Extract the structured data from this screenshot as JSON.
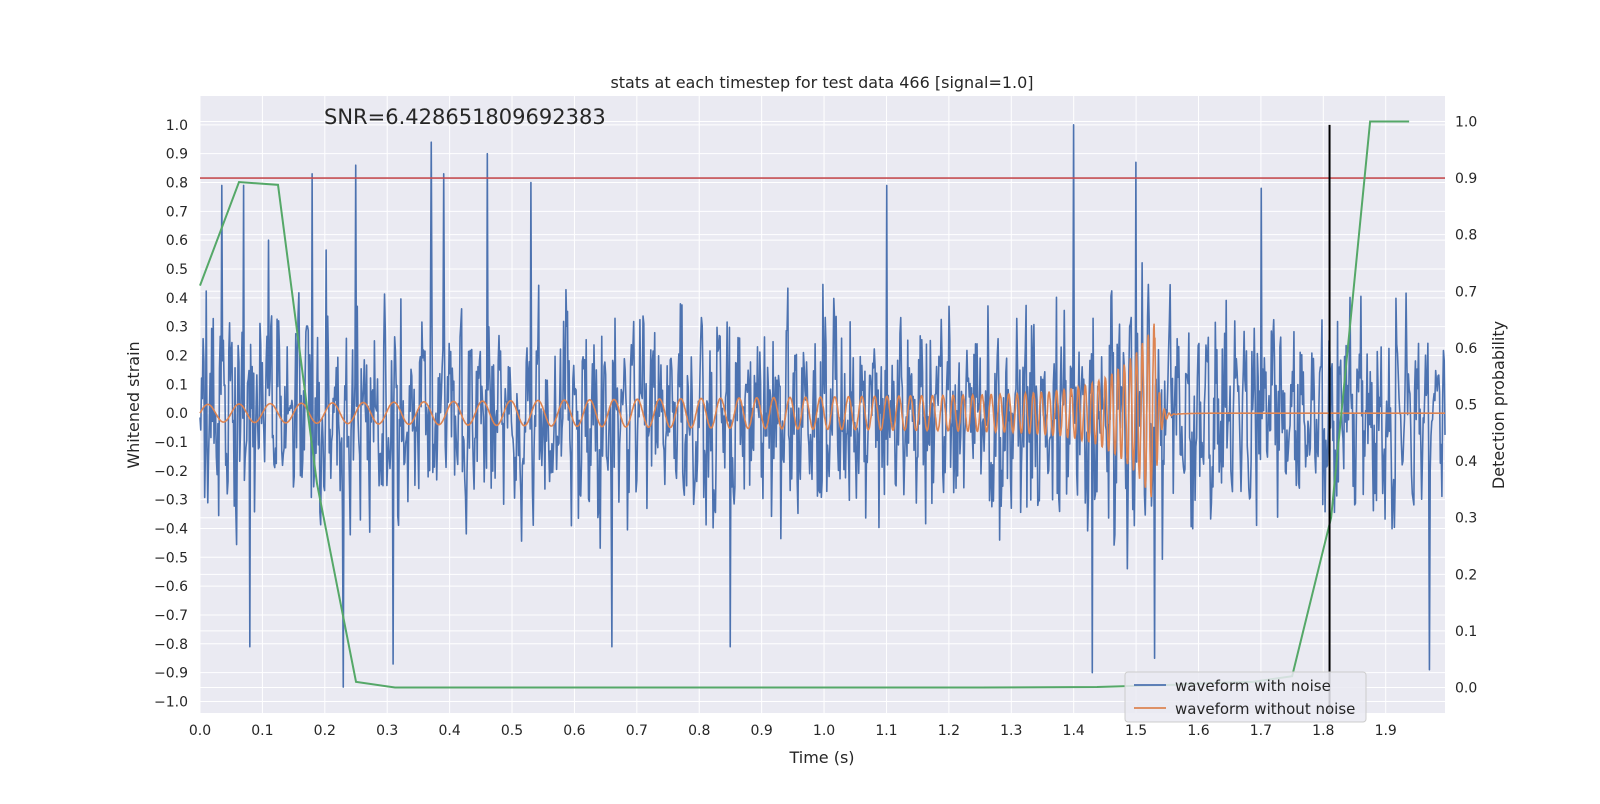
{
  "chart_data": {
    "type": "line",
    "title": "stats at each timestep for test data 466 [signal=1.0]",
    "annotation": "SNR=6.428651809692383",
    "xlabel": "Time (s)",
    "ylabel_left": "Whitened strain",
    "ylabel_right": "Detection probability",
    "xlim": [
      0.0,
      1.995
    ],
    "ylim_left": [
      -1.04,
      1.1
    ],
    "ylim_right": [
      -0.045,
      1.045
    ],
    "x_ticks": [
      "0.0",
      "0.1",
      "0.2",
      "0.3",
      "0.4",
      "0.5",
      "0.6",
      "0.7",
      "0.8",
      "0.9",
      "1.0",
      "1.1",
      "1.2",
      "1.3",
      "1.4",
      "1.5",
      "1.6",
      "1.7",
      "1.8",
      "1.9"
    ],
    "y_ticks_left": [
      "1.0",
      "0.9",
      "0.8",
      "0.7",
      "0.6",
      "0.5",
      "0.4",
      "0.3",
      "0.2",
      "0.1",
      "0.0",
      "−0.1",
      "−0.2",
      "−0.3",
      "−0.4",
      "−0.5",
      "−0.6",
      "−0.7",
      "−0.8",
      "−0.9",
      "−1.0"
    ],
    "y_ticks_right": [
      "1.0",
      "0.9",
      "0.8",
      "0.7",
      "0.6",
      "0.5",
      "0.4",
      "0.3",
      "0.2",
      "0.1",
      "0.0"
    ],
    "grid": true,
    "legend_position": "lower-right",
    "threshold": {
      "value": 0.9,
      "axis": "right",
      "color": "#c44e52"
    },
    "marker_line": {
      "x": 1.81,
      "ymin": -1.04,
      "ymax": 1.0,
      "color": "#000000"
    },
    "series": [
      {
        "name": "waveform with noise",
        "axis": "left",
        "color": "#4c72b0",
        "x_start": 0.0,
        "x_end": 1.995,
        "n_samples": 1600,
        "amplitude_range": [
          -0.95,
          1.0
        ],
        "peaks": [
          {
            "x": 0.035,
            "y": 0.79
          },
          {
            "x": 0.07,
            "y": 0.79
          },
          {
            "x": 0.11,
            "y": 0.6
          },
          {
            "x": 0.18,
            "y": 0.83
          },
          {
            "x": 0.25,
            "y": 0.86
          },
          {
            "x": 0.37,
            "y": 0.94
          },
          {
            "x": 0.39,
            "y": 0.83
          },
          {
            "x": 0.46,
            "y": 0.9
          },
          {
            "x": 0.53,
            "y": 0.8
          },
          {
            "x": 1.1,
            "y": 0.79
          },
          {
            "x": 1.4,
            "y": 1.0
          },
          {
            "x": 1.5,
            "y": 0.87
          },
          {
            "x": 1.7,
            "y": 0.78
          }
        ],
        "troughs": [
          {
            "x": 0.08,
            "y": -0.81
          },
          {
            "x": 0.23,
            "y": -0.95
          },
          {
            "x": 0.31,
            "y": -0.87
          },
          {
            "x": 0.66,
            "y": -0.81
          },
          {
            "x": 0.85,
            "y": -0.81
          },
          {
            "x": 1.43,
            "y": -0.9
          },
          {
            "x": 1.53,
            "y": -0.85
          },
          {
            "x": 1.97,
            "y": -0.89
          }
        ]
      },
      {
        "name": "waveform without noise",
        "axis": "left",
        "color": "#dd8452",
        "description_points": [
          {
            "x": 0.0,
            "y": 0.0
          },
          {
            "x": 0.5,
            "y": 0.04
          },
          {
            "x": 1.0,
            "y": 0.07
          },
          {
            "x": 1.4,
            "y": 0.13
          },
          {
            "x": 1.5,
            "y": 0.2
          },
          {
            "x": 1.53,
            "y": 0.32
          },
          {
            "x": 1.535,
            "y": -0.2
          },
          {
            "x": 1.56,
            "y": 0.0
          },
          {
            "x": 1.995,
            "y": 0.0
          }
        ],
        "freq_start_hz": 20,
        "freq_end_hz": 110,
        "merger_x": 1.53
      },
      {
        "name": "Detection probability",
        "axis": "right",
        "color": "#55a868",
        "x": [
          0.0,
          0.0625,
          0.125,
          0.1875,
          0.25,
          0.3125,
          0.375,
          0.5,
          0.75,
          1.0,
          1.25,
          1.4375,
          1.5,
          1.5625,
          1.625,
          1.6875,
          1.75,
          1.8125,
          1.875,
          1.9375
        ],
        "y": [
          0.71,
          0.893,
          0.888,
          0.36,
          0.01,
          0.0,
          0.0,
          0.0,
          0.0,
          0.0,
          0.0,
          0.001,
          0.003,
          0.005,
          0.008,
          0.01,
          0.02,
          0.3,
          1.0,
          1.0
        ]
      }
    ]
  },
  "legend": {
    "items": [
      {
        "label": "waveform with noise",
        "color": "#4c72b0"
      },
      {
        "label": "waveform without noise",
        "color": "#dd8452"
      }
    ]
  },
  "colors": {
    "plot_background": "#eaeaf2",
    "grid": "#ffffff",
    "text": "#262626"
  }
}
